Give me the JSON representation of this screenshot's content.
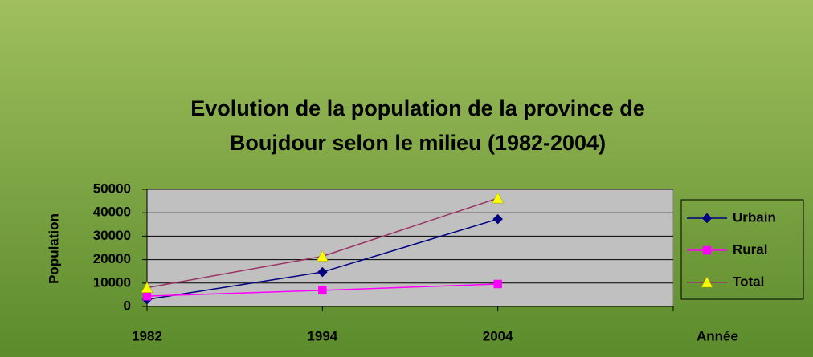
{
  "chart_data": {
    "type": "line",
    "title": "Evolution de la population de la province de Boujdour selon le milieu (1982-2004)",
    "title_lines": [
      "Evolution de la population de la province de",
      "Boujdour selon le milieu (1982-2004)"
    ],
    "x_label": "Année",
    "y_label": "Population",
    "categories": [
      "1982",
      "1994",
      "2004",
      null
    ],
    "series": [
      {
        "name": "Urbain",
        "color": "#000080",
        "marker": "diamond",
        "marker_color": "#000080",
        "values": [
          3000,
          14700,
          37300,
          null
        ]
      },
      {
        "name": "Rural",
        "color": "#ff00ff",
        "marker": "square",
        "marker_color": "#ff00ff",
        "values": [
          4400,
          6900,
          9600,
          null
        ]
      },
      {
        "name": "Total",
        "color": "#993366",
        "marker": "triangle",
        "marker_color": "#ffff00",
        "values": [
          8000,
          21400,
          46200,
          null
        ]
      }
    ],
    "ylim": [
      0,
      50000
    ],
    "yticks": [
      0,
      10000,
      20000,
      30000,
      40000,
      50000
    ],
    "grid": true,
    "legend": "right"
  }
}
